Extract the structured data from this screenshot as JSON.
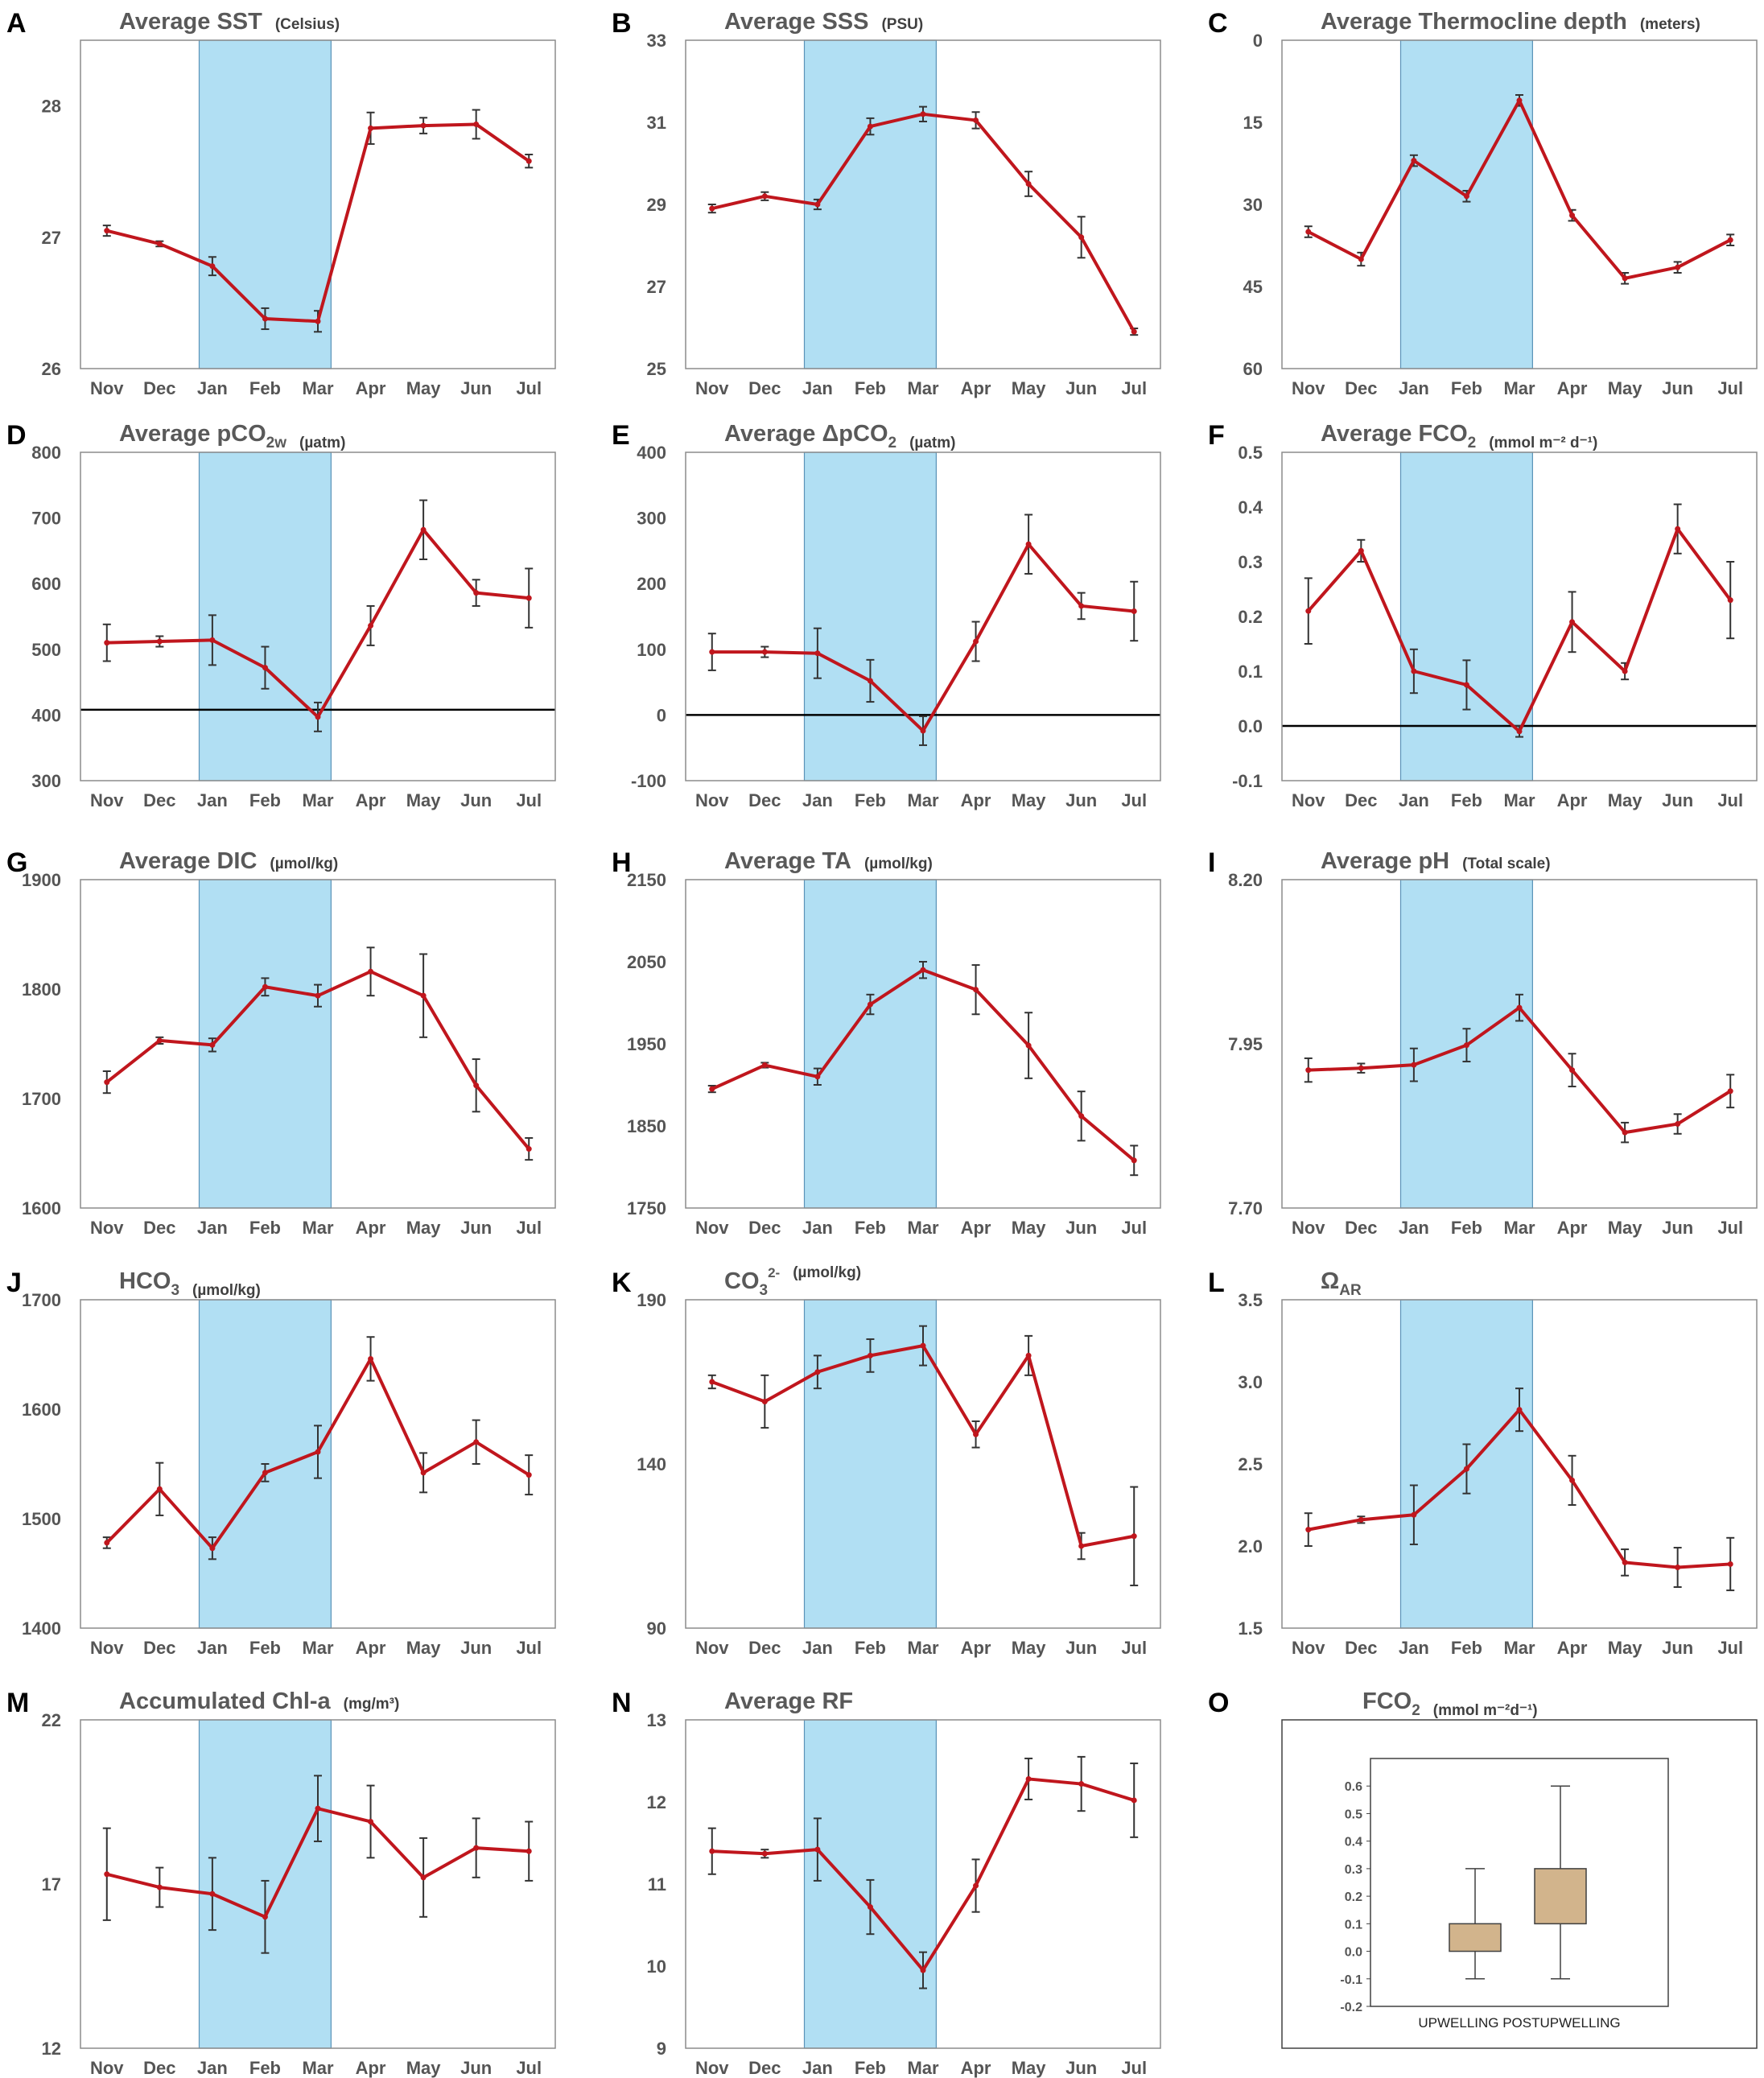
{
  "colors": {
    "line": "#c0161d",
    "shade": "#b1dff3",
    "shade_edge": "#5b93b8",
    "whisker": "#333333",
    "box": "#d2b48c",
    "zero": "#000000"
  },
  "chart_data": [
    {
      "id": "A",
      "type": "line",
      "title": "Average SST",
      "unit": "(Celsius)",
      "categories": [
        "Nov",
        "Dec",
        "Jan",
        "Feb",
        "Mar",
        "Apr",
        "May",
        "Jun",
        "Jul"
      ],
      "values": [
        27.05,
        26.95,
        26.78,
        26.38,
        26.36,
        27.83,
        27.85,
        27.86,
        27.58
      ],
      "errors": [
        0.04,
        0.02,
        0.07,
        0.08,
        0.08,
        0.12,
        0.06,
        0.11,
        0.05
      ],
      "yticks": [
        "26",
        "27",
        "28"
      ],
      "ylim": [
        26,
        28.5
      ],
      "inverted": false,
      "shade": [
        "Jan",
        "Mar"
      ],
      "zero_line": null
    },
    {
      "id": "B",
      "type": "line",
      "title": "Average SSS",
      "unit": "(PSU)",
      "categories": [
        "Nov",
        "Dec",
        "Jan",
        "Feb",
        "Mar",
        "Apr",
        "May",
        "Jun",
        "Jul"
      ],
      "values": [
        28.9,
        29.2,
        29.0,
        30.9,
        31.2,
        31.05,
        29.5,
        28.2,
        25.9
      ],
      "errors": [
        0.1,
        0.1,
        0.12,
        0.2,
        0.18,
        0.2,
        0.3,
        0.5,
        0.08
      ],
      "yticks": [
        "25",
        "27",
        "29",
        "31",
        "33"
      ],
      "ylim": [
        25,
        33
      ],
      "inverted": false,
      "shade": [
        "Jan",
        "Mar"
      ],
      "zero_line": null
    },
    {
      "id": "C",
      "type": "line",
      "title": "Average Thermocline depth",
      "unit": "(meters)",
      "categories": [
        "Nov",
        "Dec",
        "Jan",
        "Feb",
        "Mar",
        "Apr",
        "May",
        "Jun",
        "Jul"
      ],
      "values": [
        35,
        40,
        22,
        28.5,
        11,
        32,
        43.5,
        41.5,
        36.5
      ],
      "errors": [
        1,
        1.2,
        1,
        1,
        1,
        1,
        1,
        1,
        1
      ],
      "yticks": [
        "0",
        "15",
        "30",
        "45",
        "60"
      ],
      "ylim": [
        0,
        60
      ],
      "inverted": true,
      "shade": [
        "Jan",
        "Mar"
      ],
      "zero_line": null
    },
    {
      "id": "D",
      "type": "line",
      "title": "Average pCO",
      "title_sub": "2w",
      "unit": "(µatm)",
      "categories": [
        "Nov",
        "Dec",
        "Jan",
        "Feb",
        "Mar",
        "Apr",
        "May",
        "Jun",
        "Jul"
      ],
      "values": [
        510,
        512,
        514,
        472,
        397,
        536,
        682,
        586,
        578
      ],
      "errors": [
        28,
        8,
        38,
        32,
        22,
        30,
        45,
        20,
        45
      ],
      "yticks": [
        "300",
        "400",
        "500",
        "600",
        "700",
        "800"
      ],
      "ylim": [
        300,
        800
      ],
      "inverted": false,
      "shade": [
        "Jan",
        "Mar"
      ],
      "zero_line": 408
    },
    {
      "id": "E",
      "type": "line",
      "title": "Average ΔpCO",
      "title_sub": "2",
      "unit": "(µatm)",
      "categories": [
        "Nov",
        "Dec",
        "Jan",
        "Feb",
        "Mar",
        "Apr",
        "May",
        "Jun",
        "Jul"
      ],
      "values": [
        96,
        96,
        94,
        52,
        -24,
        112,
        260,
        166,
        158
      ],
      "errors": [
        28,
        8,
        38,
        32,
        22,
        30,
        45,
        20,
        45
      ],
      "yticks": [
        "-100",
        "0",
        "100",
        "200",
        "300",
        "400"
      ],
      "ylim": [
        -100,
        400
      ],
      "inverted": false,
      "shade": [
        "Jan",
        "Mar"
      ],
      "zero_line": 0
    },
    {
      "id": "F",
      "type": "line",
      "title": "Average FCO",
      "title_sub": "2",
      "unit": "(mmol m⁻² d⁻¹)",
      "categories": [
        "Nov",
        "Dec",
        "Jan",
        "Feb",
        "Mar",
        "Apr",
        "May",
        "Jun",
        "Jul"
      ],
      "values": [
        0.21,
        0.32,
        0.1,
        0.075,
        -0.01,
        0.19,
        0.1,
        0.36,
        0.23
      ],
      "errors": [
        0.06,
        0.02,
        0.04,
        0.045,
        0.01,
        0.055,
        0.015,
        0.045,
        0.07
      ],
      "yticks": [
        "-0.1",
        "0.0",
        "0.1",
        "0.2",
        "0.3",
        "0.4",
        "0.5"
      ],
      "ylim": [
        -0.1,
        0.5
      ],
      "inverted": false,
      "shade": [
        "Jan",
        "Mar"
      ],
      "zero_line": 0
    },
    {
      "id": "G",
      "type": "line",
      "title": "Average DIC",
      "unit": "(µmol/kg)",
      "categories": [
        "Nov",
        "Dec",
        "Jan",
        "Feb",
        "Mar",
        "Apr",
        "May",
        "Jun",
        "Jul"
      ],
      "values": [
        1715,
        1753,
        1749,
        1802,
        1794,
        1816,
        1794,
        1712,
        1654
      ],
      "errors": [
        10,
        3,
        6,
        8,
        10,
        22,
        38,
        24,
        10
      ],
      "yticks": [
        "1600",
        "1700",
        "1800",
        "1900"
      ],
      "ylim": [
        1600,
        1900
      ],
      "inverted": false,
      "shade": [
        "Jan",
        "Mar"
      ],
      "zero_line": null
    },
    {
      "id": "H",
      "type": "line",
      "title": "Average TA",
      "unit": "(µmol/kg)",
      "categories": [
        "Nov",
        "Dec",
        "Jan",
        "Feb",
        "Mar",
        "Apr",
        "May",
        "Jun",
        "Jul"
      ],
      "values": [
        1895,
        1924,
        1910,
        1998,
        2040,
        2016,
        1948,
        1862,
        1808
      ],
      "errors": [
        4,
        3,
        10,
        12,
        10,
        30,
        40,
        30,
        18
      ],
      "yticks": [
        "1750",
        "1850",
        "1950",
        "2050",
        "2150"
      ],
      "ylim": [
        1750,
        2150
      ],
      "inverted": false,
      "shade": [
        "Jan",
        "Mar"
      ],
      "zero_line": null
    },
    {
      "id": "I",
      "type": "line",
      "title": "Average pH",
      "unit": "(Total scale)",
      "categories": [
        "Nov",
        "Dec",
        "Jan",
        "Feb",
        "Mar",
        "Apr",
        "May",
        "Jun",
        "Jul"
      ],
      "values": [
        7.91,
        7.913,
        7.918,
        7.948,
        8.005,
        7.91,
        7.815,
        7.828,
        7.878
      ],
      "errors": [
        0.018,
        0.007,
        0.025,
        0.025,
        0.02,
        0.025,
        0.015,
        0.015,
        0.025
      ],
      "yticks": [
        "7.70",
        "7.95",
        "8.20"
      ],
      "ylim": [
        7.7,
        8.2
      ],
      "inverted": false,
      "shade": [
        "Jan",
        "Mar"
      ],
      "zero_line": null
    },
    {
      "id": "J",
      "type": "line",
      "title": "HCO",
      "title_sub": "3",
      "unit": "(µmol/kg)",
      "categories": [
        "Nov",
        "Dec",
        "Jan",
        "Feb",
        "Mar",
        "Apr",
        "May",
        "Jun",
        "Jul"
      ],
      "values": [
        1478,
        1527,
        1473,
        1542,
        1561,
        1646,
        1542,
        1570,
        1540
      ],
      "errors": [
        5,
        24,
        10,
        8,
        24,
        20,
        18,
        20,
        18
      ],
      "yticks": [
        "1400",
        "1500",
        "1600",
        "1700"
      ],
      "ylim": [
        1400,
        1700
      ],
      "inverted": false,
      "shade": [
        "Jan",
        "Mar"
      ],
      "zero_line": null
    },
    {
      "id": "K",
      "type": "line",
      "title": "CO",
      "title_sub": "3",
      "title_sup": "2-",
      "unit": "(µmol/kg)",
      "categories": [
        "Nov",
        "Dec",
        "Jan",
        "Feb",
        "Mar",
        "Apr",
        "May",
        "Jun",
        "Jul"
      ],
      "values": [
        165,
        159,
        168,
        173,
        176,
        149,
        173,
        115,
        118
      ],
      "errors": [
        2,
        8,
        5,
        5,
        6,
        4,
        6,
        4,
        15
      ],
      "yticks": [
        "90",
        "140",
        "190"
      ],
      "ylim": [
        90,
        190
      ],
      "inverted": false,
      "shade": [
        "Jan",
        "Mar"
      ],
      "zero_line": null
    },
    {
      "id": "L",
      "type": "line",
      "title": "Ω",
      "title_sub": "AR",
      "unit": "",
      "categories": [
        "Nov",
        "Dec",
        "Jan",
        "Feb",
        "Mar",
        "Apr",
        "May",
        "Jun",
        "Jul"
      ],
      "values": [
        2.1,
        2.16,
        2.19,
        2.47,
        2.83,
        2.4,
        1.9,
        1.87,
        1.89
      ],
      "errors": [
        0.1,
        0.02,
        0.18,
        0.15,
        0.13,
        0.15,
        0.08,
        0.12,
        0.16
      ],
      "yticks": [
        "1.5",
        "2.0",
        "2.5",
        "3.0",
        "3.5"
      ],
      "ylim": [
        1.5,
        3.5
      ],
      "inverted": false,
      "shade": [
        "Jan",
        "Mar"
      ],
      "zero_line": null
    },
    {
      "id": "M",
      "type": "line",
      "title": "Accumulated Chl-a",
      "unit": "(mg/m³)",
      "categories": [
        "Nov",
        "Dec",
        "Jan",
        "Feb",
        "Mar",
        "Apr",
        "May",
        "Jun",
        "Jul"
      ],
      "values": [
        17.3,
        16.9,
        16.7,
        16.0,
        19.3,
        18.9,
        17.2,
        18.1,
        18.0
      ],
      "errors": [
        1.4,
        0.6,
        1.1,
        1.1,
        1.0,
        1.1,
        1.2,
        0.9,
        0.9
      ],
      "yticks": [
        "12",
        "17",
        "22"
      ],
      "ylim": [
        12,
        22
      ],
      "inverted": false,
      "shade": [
        "Jan",
        "Mar"
      ],
      "zero_line": null
    },
    {
      "id": "N",
      "type": "line",
      "title": "Average RF",
      "unit": "",
      "categories": [
        "Nov",
        "Dec",
        "Jan",
        "Feb",
        "Mar",
        "Apr",
        "May",
        "Jun",
        "Jul"
      ],
      "values": [
        11.4,
        11.37,
        11.42,
        10.72,
        9.95,
        10.98,
        12.28,
        12.22,
        12.02
      ],
      "errors": [
        0.28,
        0.05,
        0.38,
        0.33,
        0.22,
        0.32,
        0.25,
        0.33,
        0.45
      ],
      "yticks": [
        "9",
        "10",
        "11",
        "12",
        "13"
      ],
      "ylim": [
        9,
        13
      ],
      "inverted": false,
      "shade": [
        "Jan",
        "Mar"
      ],
      "zero_line": null
    },
    {
      "id": "O",
      "type": "box",
      "title": "FCO",
      "title_sub": "2",
      "unit": "(mmol m⁻²d⁻¹)",
      "categories": [
        "UPWELLING",
        "POSTUPWELLING"
      ],
      "boxes": [
        {
          "name": "UPWELLING",
          "min": -0.1,
          "q1": 0.0,
          "median": 0.05,
          "q3": 0.1,
          "max": 0.3
        },
        {
          "name": "POSTUPWELLING",
          "min": -0.1,
          "q1": 0.1,
          "median": 0.2,
          "q3": 0.3,
          "max": 0.6
        }
      ],
      "xlabel": "UPWELLING POSTUPWELLING",
      "yticks": [
        "-0.2",
        "-0.1",
        "0.0",
        "0.1",
        "0.2",
        "0.3",
        "0.4",
        "0.5",
        "0.6"
      ],
      "ylim": [
        -0.2,
        0.7
      ]
    }
  ]
}
